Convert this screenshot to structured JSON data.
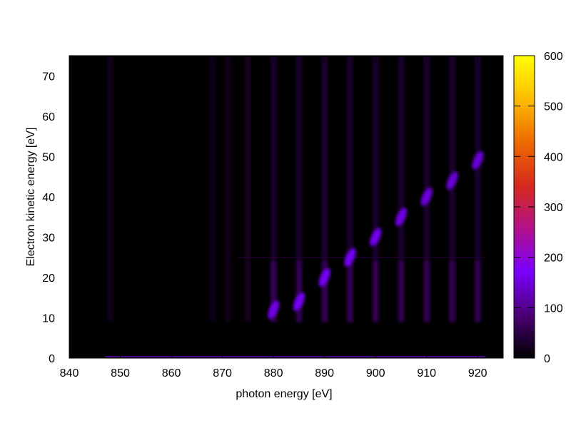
{
  "chart_data": {
    "type": "heatmap",
    "xlabel": "photon energy [eV]",
    "ylabel": "Electron kinetic energy [eV]",
    "xlim": [
      840,
      925
    ],
    "ylim": [
      0,
      75
    ],
    "x_ticks": [
      840,
      850,
      860,
      870,
      880,
      890,
      900,
      910,
      920
    ],
    "y_ticks": [
      0,
      10,
      20,
      30,
      40,
      50,
      60,
      70
    ],
    "colorbar": {
      "range": [
        0,
        600
      ],
      "ticks": [
        0,
        100,
        200,
        300,
        400,
        500,
        600
      ],
      "colormap": "gnuplot",
      "stops": [
        "#000000",
        "#4b0076",
        "#7a00ff",
        "#b3118a",
        "#d62a1c",
        "#ee6a00",
        "#fdbd00",
        "#ffff00"
      ]
    },
    "data_extent": {
      "x": [
        847,
        921.5
      ],
      "y_signal": [
        9,
        75
      ]
    },
    "vertical_bands": {
      "centers": [
        848,
        868,
        871,
        875,
        880,
        885,
        890,
        895,
        900,
        905,
        910,
        915,
        920
      ],
      "intensity": [
        28,
        20,
        26,
        32,
        45,
        45,
        45,
        45,
        45,
        45,
        45,
        45,
        45
      ]
    },
    "peak_series": [
      {
        "x": 880,
        "y": 12,
        "value": 160
      },
      {
        "x": 885,
        "y": 14,
        "value": 170
      },
      {
        "x": 890,
        "y": 20,
        "value": 170
      },
      {
        "x": 895,
        "y": 25,
        "value": 170
      },
      {
        "x": 900,
        "y": 30,
        "value": 165
      },
      {
        "x": 905,
        "y": 35,
        "value": 160
      },
      {
        "x": 910,
        "y": 40,
        "value": 155
      },
      {
        "x": 915,
        "y": 44,
        "value": 150
      },
      {
        "x": 920,
        "y": 49,
        "value": 150
      }
    ],
    "grid": false,
    "legend": "colorbar-right"
  }
}
